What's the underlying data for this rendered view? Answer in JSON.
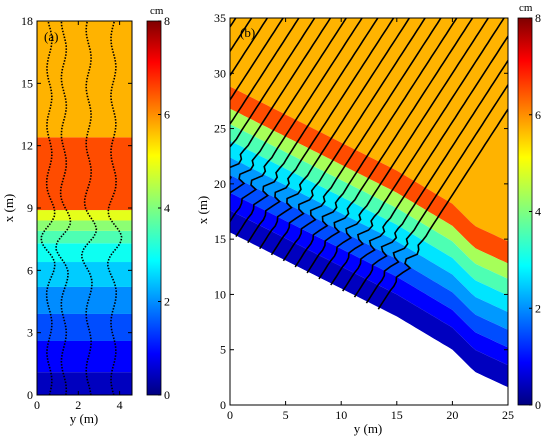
{
  "chart_data": [
    {
      "type": "heatmap",
      "panel_label": "(a)",
      "xlabel": "y (m)",
      "ylabel": "x (m)",
      "xlim": [
        0,
        4.6
      ],
      "ylim": [
        0,
        18
      ],
      "x_ticks": [
        "0",
        "2",
        "4"
      ],
      "y_ticks": [
        "0",
        "3",
        "6",
        "9",
        "12",
        "15",
        "18"
      ],
      "colorbar": {
        "unit": "cm",
        "range": [
          0,
          8
        ],
        "ticks": [
          "0",
          "2",
          "4",
          "6",
          "8"
        ]
      },
      "bands": [
        {
          "x_from": 0.0,
          "x_to": 1.1,
          "value": 0.5
        },
        {
          "x_from": 1.1,
          "x_to": 2.6,
          "value": 1.0
        },
        {
          "x_from": 2.6,
          "x_to": 3.9,
          "value": 1.6
        },
        {
          "x_from": 3.9,
          "x_to": 5.2,
          "value": 2.1
        },
        {
          "x_from": 5.2,
          "x_to": 6.4,
          "value": 2.6
        },
        {
          "x_from": 6.4,
          "x_to": 7.3,
          "value": 3.1
        },
        {
          "x_from": 7.3,
          "x_to": 7.9,
          "value": 3.6
        },
        {
          "x_from": 7.9,
          "x_to": 8.4,
          "value": 4.1
        },
        {
          "x_from": 8.4,
          "x_to": 8.9,
          "value": 4.8
        },
        {
          "x_from": 8.9,
          "x_to": 12.4,
          "value": 6.4
        },
        {
          "x_from": 12.4,
          "x_to": 18.0,
          "value": 5.6
        }
      ],
      "trajectories_y": [
        0.6,
        1.3,
        2.5,
        3.7
      ]
    },
    {
      "type": "heatmap",
      "panel_label": "(b)",
      "xlabel": "y (m)",
      "ylabel": "x (m)",
      "xlim": [
        0,
        25
      ],
      "ylim": [
        0,
        35
      ],
      "x_ticks": [
        "0",
        "5",
        "10",
        "15",
        "20",
        "25"
      ],
      "y_ticks": [
        "0",
        "5",
        "10",
        "15",
        "20",
        "25",
        "30",
        "35"
      ],
      "colorbar": {
        "unit": "cm",
        "range": [
          0,
          8
        ],
        "ticks": [
          "0",
          "2",
          "4",
          "6",
          "8"
        ]
      },
      "bank": [
        [
          0,
          15.6
        ],
        [
          15.0,
          8.0
        ],
        [
          20.0,
          5.0
        ],
        [
          22.0,
          3.0
        ],
        [
          25,
          1.6
        ]
      ],
      "band_offsets": [
        0.0,
        2.0,
        3.6,
        5.2,
        6.8,
        8.3,
        9.8,
        11.2,
        13.2
      ],
      "band_values": [
        0.5,
        1.0,
        1.6,
        2.2,
        2.8,
        3.6,
        4.3,
        6.4,
        5.6
      ],
      "trajectory_count": 24
    }
  ]
}
